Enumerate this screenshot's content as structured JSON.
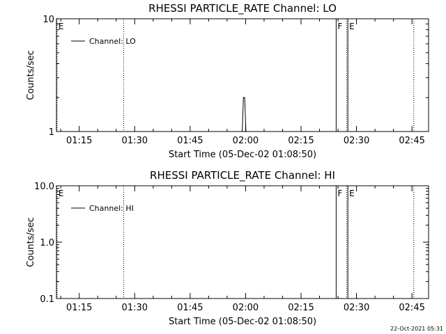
{
  "chart_data": [
    {
      "type": "line",
      "title": "RHESSI PARTICLE_RATE Channel: LO",
      "xlabel": "Start Time (05-Dec-02 01:08:50)",
      "ylabel": "Counts/sec",
      "yscale": "log",
      "ylim": [
        1,
        10
      ],
      "y_ticks": [
        "1",
        "10"
      ],
      "x_ticks": [
        "01:15",
        "01:30",
        "01:45",
        "02:00",
        "02:15",
        "02:30",
        "02:45"
      ],
      "xlim": [
        "01:08:50",
        "02:49:30"
      ],
      "legend": {
        "placement": "top-left",
        "entries": [
          "Channel: LO"
        ]
      },
      "series": [
        {
          "name": "Channel: LO",
          "x": [
            "01:58:50",
            "01:59:05",
            "01:59:25",
            "01:59:45",
            "02:00:05",
            "02:00:20"
          ],
          "y": [
            1,
            1,
            2,
            2,
            1,
            1
          ]
        }
      ],
      "markers": [
        {
          "time": "01:09:00",
          "style": "dotted",
          "label": "E"
        },
        {
          "time": "01:27:00",
          "style": "dotted",
          "label": ""
        },
        {
          "time": "02:24:30",
          "style": "solid",
          "label": "F"
        },
        {
          "time": "02:27:40",
          "style": "solid",
          "label": "E"
        },
        {
          "time": "02:27:20",
          "style": "dotted",
          "label": ""
        },
        {
          "time": "02:45:30",
          "style": "dotted",
          "label": ""
        }
      ]
    },
    {
      "type": "line",
      "title": "RHESSI PARTICLE_RATE Channel: HI",
      "xlabel": "Start Time (05-Dec-02 01:08:50)",
      "ylabel": "Counts/sec",
      "yscale": "log",
      "ylim": [
        0.1,
        10
      ],
      "y_ticks": [
        "0.1",
        "1.0",
        "10.0"
      ],
      "x_ticks": [
        "01:15",
        "01:30",
        "01:45",
        "02:00",
        "02:15",
        "02:30",
        "02:45"
      ],
      "xlim": [
        "01:08:50",
        "02:49:30"
      ],
      "legend": {
        "placement": "top-left",
        "entries": [
          "Channel: HI"
        ]
      },
      "series": [
        {
          "name": "Channel: HI",
          "x": [],
          "y": []
        }
      ],
      "markers": [
        {
          "time": "01:09:00",
          "style": "dotted",
          "label": "E"
        },
        {
          "time": "01:27:00",
          "style": "dotted",
          "label": ""
        },
        {
          "time": "02:24:30",
          "style": "solid",
          "label": "F"
        },
        {
          "time": "02:27:40",
          "style": "solid",
          "label": "E"
        },
        {
          "time": "02:27:20",
          "style": "dotted",
          "label": ""
        },
        {
          "time": "02:45:30",
          "style": "dotted",
          "label": ""
        }
      ]
    }
  ],
  "footer": {
    "timestamp": "22-Oct-2021 05:31"
  }
}
